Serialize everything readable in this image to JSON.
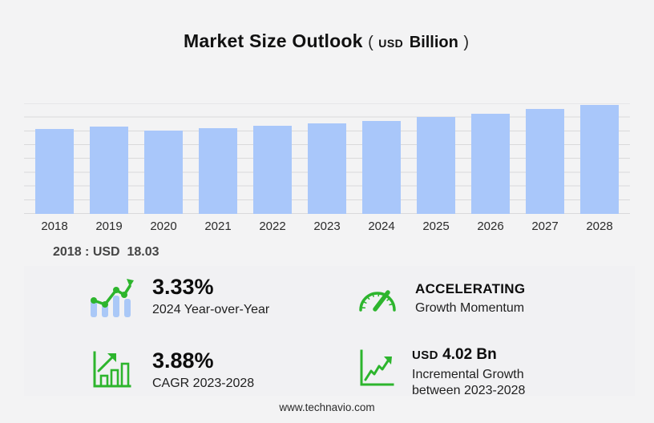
{
  "title": {
    "main": "Market Size Outlook",
    "paren_open": "(",
    "currency": "USD",
    "unit": "Billion",
    "paren_close": ")"
  },
  "chart_data": {
    "type": "bar",
    "title": "Market Size Outlook (USD Billion)",
    "categories": [
      "2018",
      "2019",
      "2020",
      "2021",
      "2022",
      "2023",
      "2024",
      "2025",
      "2026",
      "2027",
      "2028"
    ],
    "values": [
      18.03,
      18.6,
      17.7,
      18.25,
      18.7,
      19.17,
      19.81,
      20.55,
      21.3,
      22.3,
      23.19
    ],
    "xlabel": "",
    "ylabel": "USD Billion",
    "ylim": [
      0,
      23.5
    ],
    "grid": true,
    "legend": false,
    "bar_color": "#a9c7fa"
  },
  "annotation": "2018 : USD  18.03",
  "stats": [
    {
      "icon": "bar-trend-up-icon",
      "value": "3.33%",
      "label": "2024 Year-over-Year"
    },
    {
      "icon": "speedometer-icon",
      "value": "ACCELERATING",
      "label": "Growth Momentum"
    },
    {
      "icon": "growth-chart-icon",
      "value": "3.88%",
      "label": "CAGR 2023-2028"
    },
    {
      "icon": "incremental-growth-icon",
      "prefix": "USD",
      "value": "4.02 Bn",
      "label": "Incremental Growth between 2023-2028"
    }
  ],
  "footer": {
    "url": "www.technavio.com"
  },
  "colors": {
    "background": "#f3f3f4",
    "panel": "#f1f1f3",
    "bar": "#a9c7fa",
    "gridline": "#d9d9db",
    "accent_green": "#2db52d"
  }
}
